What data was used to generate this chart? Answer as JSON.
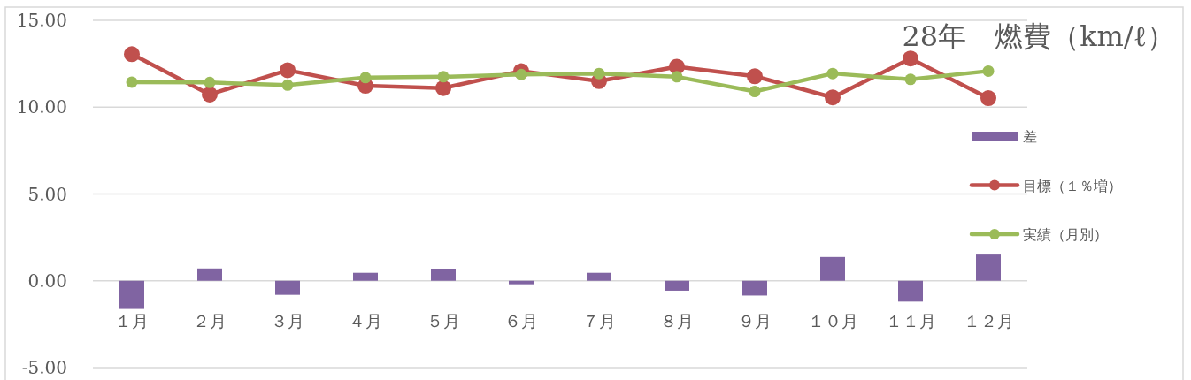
{
  "chart_data": {
    "type": "bar",
    "title": "28年　燃費（km/ℓ）",
    "categories": [
      "１月",
      "２月",
      "３月",
      "４月",
      "５月",
      "６月",
      "７月",
      "８月",
      "９月",
      "１０月",
      "１１月",
      "１２月"
    ],
    "series": [
      {
        "name": "差",
        "color": "#8064a2",
        "values": [
          -1.62,
          0.71,
          -0.81,
          0.46,
          0.7,
          -0.2,
          0.46,
          -0.57,
          -0.85,
          1.37,
          -1.2,
          1.56
        ]
      },
      {
        "name": "目標（１％増）",
        "type": "line",
        "color": "#c0504d",
        "values": [
          13.05,
          10.73,
          12.13,
          11.23,
          11.1,
          12.08,
          11.5,
          12.33,
          11.78,
          10.56,
          12.8,
          10.52
        ]
      },
      {
        "name": "実績（月別）",
        "type": "line",
        "color": "#9bbb59",
        "values": [
          11.44,
          11.42,
          11.27,
          11.7,
          11.75,
          11.88,
          11.94,
          11.75,
          10.9,
          11.94,
          11.6,
          12.08
        ]
      }
    ],
    "ylim": [
      -5,
      15
    ],
    "yticks": [
      {
        "value": -5,
        "label": "-5.00"
      },
      {
        "value": 0,
        "label": "0.00"
      },
      {
        "value": 5,
        "label": "5.00"
      },
      {
        "value": 10,
        "label": "10.00"
      },
      {
        "value": 15,
        "label": "15.00"
      }
    ],
    "grid": "y",
    "legend": "right",
    "marker": "circle",
    "line_style": "solid"
  }
}
